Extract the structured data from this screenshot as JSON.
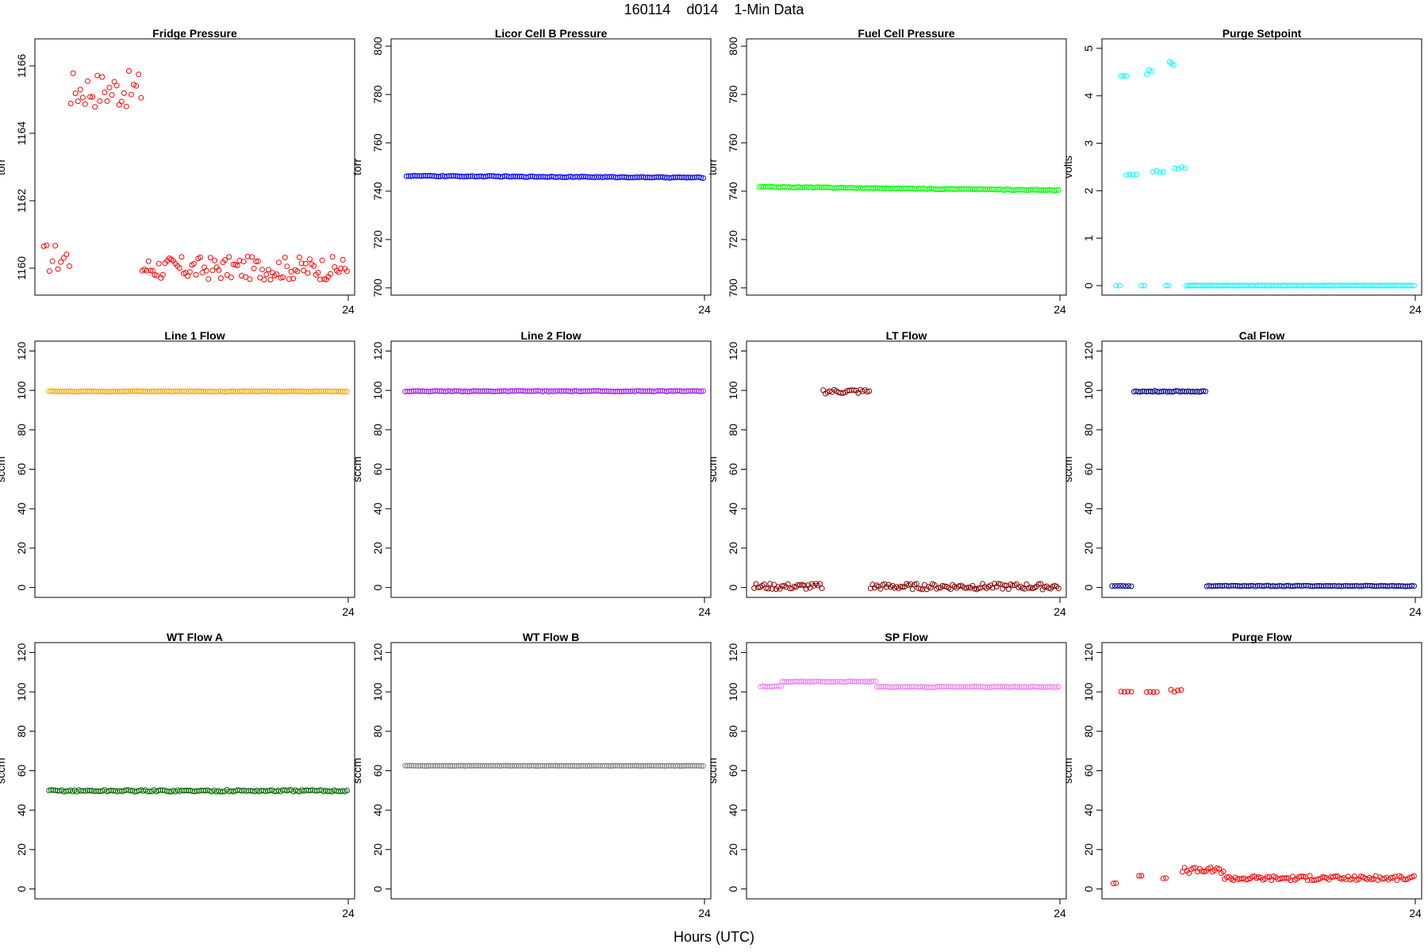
{
  "figure": {
    "title": "160114    d014    1-Min Data",
    "xlabel": "Hours (UTC)"
  },
  "chart_data": [
    {
      "type": "scatter",
      "title": "Fridge Pressure",
      "ylabel": "torr",
      "color": "#ff0000",
      "ylim": [
        1159.2,
        1166.8
      ],
      "yticks": [
        1160,
        1162,
        1164,
        1166
      ],
      "xlim": [
        0,
        24
      ],
      "xticks": [
        24
      ],
      "segments": [
        {
          "x0": 0.2,
          "x1": 2.2,
          "n": 10,
          "base": 1160.3,
          "amp": 0.45
        },
        {
          "x0": 2.3,
          "x1": 7.8,
          "n": 30,
          "base": 1165.3,
          "amp": 0.55
        },
        {
          "x0": 7.9,
          "x1": 23.9,
          "n": 100,
          "base": 1160.0,
          "amp": 0.35
        }
      ]
    },
    {
      "type": "scatter",
      "title": "Licor Cell B Pressure",
      "ylabel": "torr",
      "color": "#0000ff",
      "ylim": [
        697,
        803
      ],
      "yticks": [
        700,
        720,
        740,
        760,
        780,
        800
      ],
      "xlim": [
        0,
        24
      ],
      "xticks": [
        24
      ],
      "segments": [
        {
          "x0": 0.7,
          "x1": 23.9,
          "n": 140,
          "y0": 746.3,
          "y1": 745.6,
          "amp": 0.2
        }
      ]
    },
    {
      "type": "scatter",
      "title": "Fuel Cell Pressure",
      "ylabel": "torr",
      "color": "#00ff00",
      "ylim": [
        697,
        803
      ],
      "yticks": [
        700,
        720,
        740,
        760,
        780,
        800
      ],
      "xlim": [
        0,
        24
      ],
      "xticks": [
        24
      ],
      "segments": [
        {
          "x0": 0.5,
          "x1": 23.9,
          "n": 140,
          "y0": 741.8,
          "y1": 740.4,
          "amp": 0.2
        }
      ]
    },
    {
      "type": "scatter",
      "title": "Purge Setpoint",
      "ylabel": "volts",
      "color": "#00ffff",
      "ylim": [
        -0.2,
        5.2
      ],
      "yticks": [
        0,
        1,
        2,
        3,
        4,
        5
      ],
      "xlim": [
        0,
        24
      ],
      "xticks": [
        24
      ],
      "segments": [
        {
          "x0": 0.6,
          "x1": 0.9,
          "n": 2,
          "base": 0,
          "amp": 0
        },
        {
          "x0": 1.0,
          "x1": 1.4,
          "n": 3,
          "base": 4.4,
          "amp": 0.03
        },
        {
          "x0": 1.4,
          "x1": 2.2,
          "n": 4,
          "base": 2.35,
          "amp": 0.02
        },
        {
          "x0": 2.6,
          "x1": 2.8,
          "n": 2,
          "base": 0,
          "amp": 0
        },
        {
          "x0": 3.0,
          "x1": 3.4,
          "n": 3,
          "base": 4.5,
          "amp": 0.05
        },
        {
          "x0": 3.5,
          "x1": 4.3,
          "n": 4,
          "base": 2.4,
          "amp": 0.02
        },
        {
          "x0": 4.5,
          "x1": 4.7,
          "n": 2,
          "base": 0,
          "amp": 0
        },
        {
          "x0": 4.8,
          "x1": 5.1,
          "n": 3,
          "base": 4.65,
          "amp": 0.12
        },
        {
          "x0": 5.2,
          "x1": 6.0,
          "n": 4,
          "base": 2.48,
          "amp": 0.02
        },
        {
          "x0": 6.1,
          "x1": 23.9,
          "n": 100,
          "base": 0,
          "amp": 0
        }
      ]
    },
    {
      "type": "scatter",
      "title": "Line 1 Flow",
      "ylabel": "sccm",
      "color": "#ffa500",
      "ylim": [
        -5,
        125
      ],
      "yticks": [
        0,
        20,
        40,
        60,
        80,
        100,
        120
      ],
      "xlim": [
        0,
        24
      ],
      "xticks": [
        24
      ],
      "segments": [
        {
          "x0": 0.6,
          "x1": 23.9,
          "n": 140,
          "base": 99.5,
          "amp": 0.2
        }
      ]
    },
    {
      "type": "scatter",
      "title": "Line 2 Flow",
      "ylabel": "sccm",
      "color": "#a020f0",
      "ylim": [
        -5,
        125
      ],
      "yticks": [
        0,
        20,
        40,
        60,
        80,
        100,
        120
      ],
      "xlim": [
        0,
        24
      ],
      "xticks": [
        24
      ],
      "segments": [
        {
          "x0": 0.6,
          "x1": 23.9,
          "n": 140,
          "base": 99.6,
          "amp": 0.2
        }
      ]
    },
    {
      "type": "scatter",
      "title": "LT Flow",
      "ylabel": "sccm",
      "color": "#8b0000",
      "ylim": [
        -5,
        125
      ],
      "yticks": [
        0,
        20,
        40,
        60,
        80,
        100,
        120
      ],
      "xlim": [
        0,
        24
      ],
      "xticks": [
        24
      ],
      "segments": [
        {
          "x0": 0.1,
          "x1": 5.4,
          "n": 35,
          "base": 0.5,
          "amp": 1.5
        },
        {
          "x0": 5.5,
          "x1": 9.1,
          "n": 22,
          "base": 99.5,
          "amp": 1.2
        },
        {
          "x0": 9.2,
          "x1": 23.9,
          "n": 95,
          "base": 0.5,
          "amp": 1.5
        }
      ]
    },
    {
      "type": "scatter",
      "title": "Cal Flow",
      "ylabel": "sccm",
      "color": "#00008b",
      "ylim": [
        -5,
        125
      ],
      "yticks": [
        0,
        20,
        40,
        60,
        80,
        100,
        120
      ],
      "xlim": [
        0,
        24
      ],
      "xticks": [
        24
      ],
      "segments": [
        {
          "x0": 0.3,
          "x1": 1.8,
          "n": 8,
          "base": 0.8,
          "amp": 0.2
        },
        {
          "x0": 2.0,
          "x1": 7.6,
          "n": 35,
          "base": 99.5,
          "amp": 0.3
        },
        {
          "x0": 7.7,
          "x1": 23.9,
          "n": 95,
          "base": 0.8,
          "amp": 0.2
        }
      ]
    },
    {
      "type": "scatter",
      "title": "WT Flow A",
      "ylabel": "sccm",
      "color": "#006400",
      "ylim": [
        -5,
        125
      ],
      "yticks": [
        0,
        20,
        40,
        60,
        80,
        100,
        120
      ],
      "xlim": [
        0,
        24
      ],
      "xticks": [
        24
      ],
      "segments": [
        {
          "x0": 0.6,
          "x1": 23.9,
          "n": 140,
          "base": 49.8,
          "amp": 0.5
        }
      ]
    },
    {
      "type": "scatter",
      "title": "WT Flow B",
      "ylabel": "sccm",
      "color": "#808080",
      "ylim": [
        -5,
        125
      ],
      "yticks": [
        0,
        20,
        40,
        60,
        80,
        100,
        120
      ],
      "xlim": [
        0,
        24
      ],
      "xticks": [
        24
      ],
      "segments": [
        {
          "x0": 0.6,
          "x1": 23.9,
          "n": 140,
          "base": 62.5,
          "amp": 0.1
        }
      ]
    },
    {
      "type": "scatter",
      "title": "SP Flow",
      "ylabel": "sccm",
      "color": "#ee82ee",
      "ylim": [
        -5,
        125
      ],
      "yticks": [
        0,
        20,
        40,
        60,
        80,
        100,
        120
      ],
      "xlim": [
        0,
        24
      ],
      "xticks": [
        24
      ],
      "segments": [
        {
          "x0": 0.6,
          "x1": 2.2,
          "n": 10,
          "base": 102.8,
          "amp": 0.2
        },
        {
          "x0": 2.3,
          "x1": 9.6,
          "n": 45,
          "base": 105.2,
          "amp": 0.2
        },
        {
          "x0": 9.7,
          "x1": 23.9,
          "n": 85,
          "base": 102.5,
          "amp": 0.2
        }
      ]
    },
    {
      "type": "scatter",
      "title": "Purge Flow",
      "ylabel": "sccm",
      "color": "#ff0000",
      "ylim": [
        -5,
        125
      ],
      "yticks": [
        0,
        20,
        40,
        60,
        80,
        100,
        120
      ],
      "xlim": [
        0,
        24
      ],
      "xticks": [
        24
      ],
      "segments": [
        {
          "x0": 0.4,
          "x1": 0.6,
          "n": 2,
          "base": 3.0,
          "amp": 0.5
        },
        {
          "x0": 1.0,
          "x1": 1.8,
          "n": 4,
          "base": 100.2,
          "amp": 0.4
        },
        {
          "x0": 2.4,
          "x1": 2.6,
          "n": 2,
          "base": 6.5,
          "amp": 0.3
        },
        {
          "x0": 3.0,
          "x1": 3.8,
          "n": 4,
          "base": 100.2,
          "amp": 0.4
        },
        {
          "x0": 4.3,
          "x1": 4.5,
          "n": 2,
          "base": 5.5,
          "amp": 0.3
        },
        {
          "x0": 4.9,
          "x1": 5.7,
          "n": 4,
          "base": 100.5,
          "amp": 0.6
        },
        {
          "x0": 5.8,
          "x1": 9.0,
          "n": 20,
          "base": 9.5,
          "amp": 1.5
        },
        {
          "x0": 9.1,
          "x1": 23.9,
          "n": 90,
          "base": 5.5,
          "amp": 1.2
        }
      ]
    }
  ]
}
